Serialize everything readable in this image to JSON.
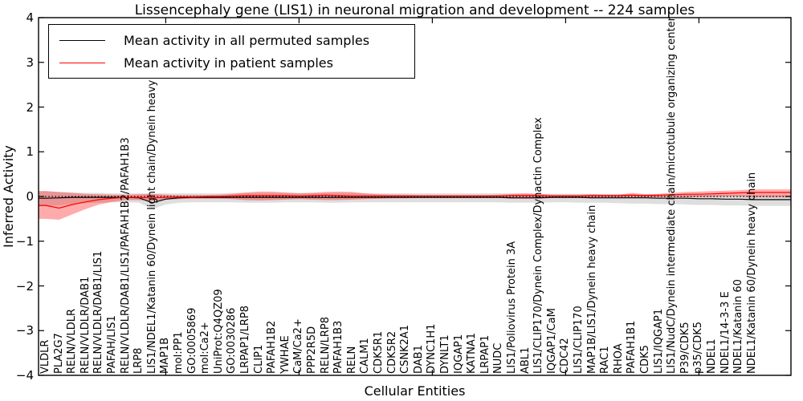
{
  "title": "Lissencephaly gene (LIS1) in neuronal migration and development -- 224 samples",
  "axes": {
    "x_title": "Cellular Entities",
    "y_title": "Inferred Activity",
    "y_tick_labels": [
      "4",
      "3",
      "2",
      "1",
      "0",
      "−1",
      "−2",
      "−3",
      "−4"
    ],
    "y_tick_values": [
      4,
      3,
      2,
      1,
      0,
      -1,
      -2,
      -3,
      -4
    ]
  },
  "legend": {
    "items": [
      {
        "label": "Mean activity in all permuted samples",
        "color": "#000000"
      },
      {
        "label": "Mean activity in patient samples",
        "color": "#ff0000"
      }
    ]
  },
  "colors": {
    "permuted_line": "#000000",
    "permuted_band": "rgba(0,0,0,0.13)",
    "patient_line": "#ff0000",
    "patient_band": "rgba(255,0,0,0.33)",
    "frame": "#000000"
  },
  "chart_data": {
    "type": "line",
    "title": "Lissencephaly gene (LIS1) in neuronal migration and development -- 224 samples",
    "xlabel": "Cellular Entities",
    "ylabel": "Inferred Activity",
    "ylim": [
      -4,
      4
    ],
    "grid": false,
    "zero_line": "dotted",
    "legend_position": "upper left",
    "x_major_ticks": [
      10,
      20,
      30,
      40,
      50
    ],
    "categories": [
      "VLDLR",
      "PLA2G7",
      "RELN/VLDLR",
      "RELN/VLDLR/DAB1",
      "RELN/VLDLR/DAB1/LIS1",
      "PAFAH/LIS1",
      "RELN/VLDLR/DAB1/LIS1/PAFAH1B2/PAFAH1B3",
      "LRP8",
      "LIS1/NDEL1/Katanin 60/Dynein light chain/Dynein heavy chain",
      "MAP1B",
      "mol:PP1",
      "GO:0005869",
      "mol:Ca2+",
      "UniProt:Q4QZ09",
      "GO:0030286",
      "LRPAP1/LRP8",
      "CLIP1",
      "PAFAH1B2",
      "YWHAE",
      "CaM/Ca2+",
      "PPP2R5D",
      "RELN/LRP8",
      "PAFAH1B3",
      "RELN",
      "CALM1",
      "CDK5R1",
      "CDK5R2",
      "CSNK2A1",
      "DAB1",
      "DYNC1H1",
      "DYNLT1",
      "IQGAP1",
      "KATNA1",
      "LRPAP1",
      "NUDC",
      "LIS1/Poliovirus Protein 3A",
      "ABL1",
      "LIS1/CLIP170/Dynein Complex/Dynactin Complex",
      "IQGAP1/CaM",
      "CDC42",
      "LIS1/CLIP170",
      "MAP1B/LIS1/Dynein heavy chain",
      "RAC1",
      "RHOA",
      "PAFAH1B1",
      "CDK5",
      "LIS1/IQGAP1",
      "LIS1/NudC/Dynein intermediate chain/microtubule organizing center",
      "P39/CDK5",
      "p35/CDK5",
      "NDEL1",
      "NDEL1/14-3-3 E",
      "NDEL1/Katanin 60",
      "NDEL1/Katanin 60/Dynein heavy chain"
    ],
    "series": [
      {
        "name": "Mean activity in all permuted samples",
        "values": [
          -0.04,
          -0.03,
          -0.02,
          -0.02,
          -0.02,
          -0.02,
          -0.02,
          -0.03,
          -0.14,
          -0.06,
          -0.03,
          -0.02,
          -0.02,
          -0.02,
          -0.02,
          -0.02,
          -0.02,
          -0.02,
          -0.02,
          -0.02,
          -0.02,
          -0.02,
          -0.02,
          -0.02,
          -0.02,
          -0.02,
          -0.02,
          -0.02,
          -0.02,
          -0.02,
          -0.02,
          -0.02,
          -0.02,
          -0.02,
          -0.02,
          -0.03,
          -0.03,
          -0.03,
          -0.02,
          -0.02,
          -0.02,
          -0.03,
          -0.03,
          -0.03,
          -0.03,
          -0.03,
          -0.04,
          -0.04,
          -0.04,
          -0.05,
          -0.05,
          -0.06,
          -0.06,
          -0.07
        ],
        "band_upper": [
          0.12,
          0.1,
          0.09,
          0.08,
          0.08,
          0.07,
          0.07,
          0.07,
          0.07,
          0.07,
          0.07,
          0.07,
          0.07,
          0.07,
          0.08,
          0.08,
          0.08,
          0.08,
          0.08,
          0.08,
          0.08,
          0.08,
          0.08,
          0.08,
          0.07,
          0.07,
          0.07,
          0.07,
          0.07,
          0.07,
          0.07,
          0.07,
          0.07,
          0.07,
          0.07,
          0.07,
          0.07,
          0.06,
          0.06,
          0.06,
          0.06,
          0.06,
          0.06,
          0.06,
          0.05,
          0.05,
          0.05,
          0.05,
          0.04,
          0.04,
          0.04,
          0.03,
          0.03,
          0.03
        ],
        "band_lower": [
          -0.22,
          -0.2,
          -0.17,
          -0.15,
          -0.14,
          -0.13,
          -0.13,
          -0.14,
          -0.28,
          -0.18,
          -0.14,
          -0.13,
          -0.13,
          -0.13,
          -0.13,
          -0.14,
          -0.14,
          -0.14,
          -0.13,
          -0.13,
          -0.13,
          -0.14,
          -0.14,
          -0.13,
          -0.13,
          -0.13,
          -0.13,
          -0.13,
          -0.13,
          -0.13,
          -0.13,
          -0.13,
          -0.13,
          -0.13,
          -0.13,
          -0.14,
          -0.14,
          -0.14,
          -0.13,
          -0.13,
          -0.14,
          -0.14,
          -0.14,
          -0.15,
          -0.16,
          -0.16,
          -0.17,
          -0.17,
          -0.18,
          -0.19,
          -0.19,
          -0.2,
          -0.2,
          -0.21
        ]
      },
      {
        "name": "Mean activity in patient samples",
        "values": [
          -0.2,
          -0.26,
          -0.18,
          -0.12,
          -0.07,
          -0.04,
          -0.02,
          -0.02,
          -0.03,
          -0.02,
          -0.01,
          -0.01,
          0.0,
          0.0,
          0.01,
          0.02,
          0.02,
          0.02,
          0.02,
          0.01,
          0.02,
          0.03,
          0.02,
          0.01,
          0.01,
          0.01,
          0.01,
          0.01,
          0.01,
          0.01,
          0.01,
          0.01,
          0.01,
          0.01,
          0.01,
          0.02,
          0.02,
          0.02,
          0.01,
          0.01,
          0.01,
          0.02,
          0.02,
          0.02,
          0.03,
          0.02,
          0.03,
          0.04,
          0.05,
          0.05,
          0.06,
          0.07,
          0.08,
          0.09
        ],
        "band_upper": [
          0.12,
          0.1,
          0.08,
          0.06,
          0.05,
          0.04,
          0.04,
          0.05,
          0.06,
          0.04,
          0.03,
          0.03,
          0.03,
          0.04,
          0.06,
          0.09,
          0.11,
          0.11,
          0.09,
          0.07,
          0.08,
          0.1,
          0.11,
          0.1,
          0.07,
          0.05,
          0.04,
          0.04,
          0.03,
          0.03,
          0.03,
          0.03,
          0.03,
          0.03,
          0.04,
          0.06,
          0.07,
          0.06,
          0.04,
          0.04,
          0.04,
          0.05,
          0.04,
          0.04,
          0.08,
          0.05,
          0.06,
          0.08,
          0.1,
          0.11,
          0.12,
          0.13,
          0.14,
          0.16
        ],
        "band_lower": [
          -0.5,
          -0.52,
          -0.4,
          -0.28,
          -0.18,
          -0.12,
          -0.08,
          -0.08,
          -0.1,
          -0.07,
          -0.06,
          -0.05,
          -0.05,
          -0.05,
          -0.06,
          -0.08,
          -0.09,
          -0.08,
          -0.07,
          -0.06,
          -0.07,
          -0.08,
          -0.08,
          -0.07,
          -0.06,
          -0.05,
          -0.04,
          -0.04,
          -0.03,
          -0.03,
          -0.03,
          -0.03,
          -0.03,
          -0.03,
          -0.03,
          -0.05,
          -0.05,
          -0.05,
          -0.03,
          -0.03,
          -0.03,
          -0.04,
          -0.03,
          -0.03,
          -0.03,
          -0.02,
          -0.02,
          -0.02,
          -0.02,
          -0.01,
          -0.01,
          0.0,
          0.0,
          -0.02
        ]
      }
    ]
  }
}
